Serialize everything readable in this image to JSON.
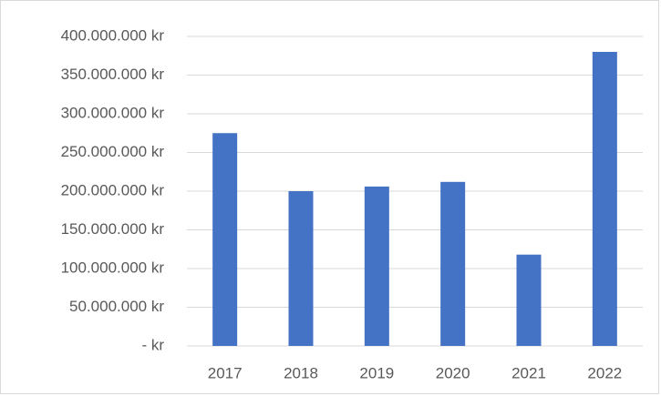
{
  "chart_data": {
    "type": "bar",
    "categories": [
      "2017",
      "2018",
      "2019",
      "2020",
      "2021",
      "2022"
    ],
    "values": [
      275000000,
      200000000,
      206000000,
      212000000,
      118000000,
      380000000
    ],
    "color": "#4472c4",
    "ylim": [
      0,
      400000000
    ],
    "yticks": [
      {
        "value": 0,
        "label": "- kr"
      },
      {
        "value": 50000000,
        "label": "50.000.000 kr"
      },
      {
        "value": 100000000,
        "label": "100.000.000 kr"
      },
      {
        "value": 150000000,
        "label": "150.000.000 kr"
      },
      {
        "value": 200000000,
        "label": "200.000.000 kr"
      },
      {
        "value": 250000000,
        "label": "250.000.000 kr"
      },
      {
        "value": 300000000,
        "label": "300.000.000 kr"
      },
      {
        "value": 350000000,
        "label": "350.000.000 kr"
      },
      {
        "value": 400000000,
        "label": "400.000.000 kr"
      }
    ],
    "grid": true
  }
}
